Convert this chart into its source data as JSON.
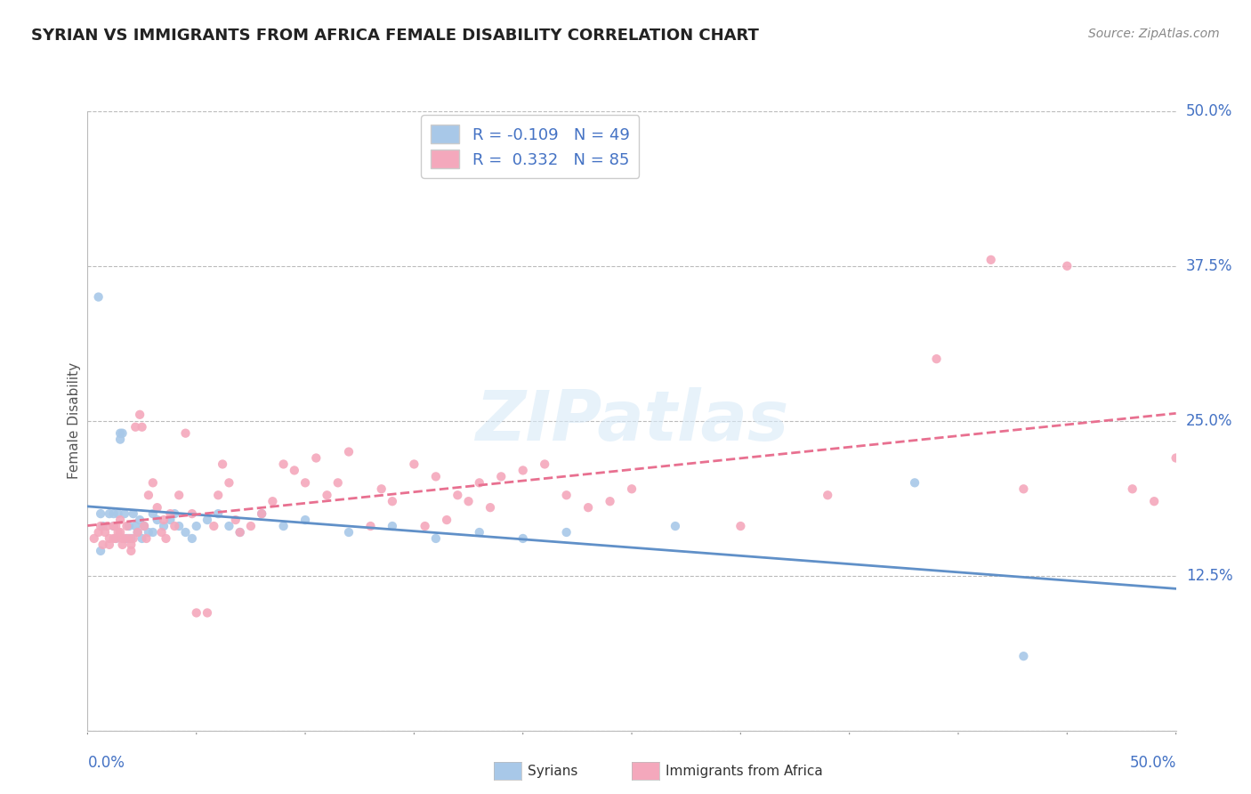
{
  "title": "SYRIAN VS IMMIGRANTS FROM AFRICA FEMALE DISABILITY CORRELATION CHART",
  "source": "Source: ZipAtlas.com",
  "ylabel": "Female Disability",
  "right_yticks": [
    0.0,
    0.125,
    0.25,
    0.375,
    0.5
  ],
  "right_yticklabels": [
    "",
    "12.5%",
    "25.0%",
    "37.5%",
    "50.0%"
  ],
  "xlim": [
    0.0,
    0.5
  ],
  "ylim": [
    0.0,
    0.5
  ],
  "syrian_color": "#a8c8e8",
  "african_line_color": "#e87090",
  "syrian_line_color": "#6090c8",
  "africa_color": "#f4a8bc",
  "syrian_R": -0.109,
  "syrian_N": 49,
  "africa_R": 0.332,
  "africa_N": 85,
  "watermark": "ZIPatlas",
  "legend_R_color": "#4472C4",
  "ytick_color": "#4472C4",
  "xtick_color": "#4472C4",
  "syrian_points": [
    [
      0.005,
      0.35
    ],
    [
      0.006,
      0.175
    ],
    [
      0.006,
      0.145
    ],
    [
      0.007,
      0.165
    ],
    [
      0.01,
      0.175
    ],
    [
      0.012,
      0.175
    ],
    [
      0.012,
      0.165
    ],
    [
      0.013,
      0.155
    ],
    [
      0.014,
      0.175
    ],
    [
      0.015,
      0.24
    ],
    [
      0.015,
      0.235
    ],
    [
      0.016,
      0.24
    ],
    [
      0.017,
      0.175
    ],
    [
      0.018,
      0.155
    ],
    [
      0.019,
      0.165
    ],
    [
      0.02,
      0.155
    ],
    [
      0.021,
      0.175
    ],
    [
      0.022,
      0.165
    ],
    [
      0.023,
      0.16
    ],
    [
      0.024,
      0.17
    ],
    [
      0.025,
      0.155
    ],
    [
      0.026,
      0.165
    ],
    [
      0.028,
      0.16
    ],
    [
      0.03,
      0.175
    ],
    [
      0.03,
      0.16
    ],
    [
      0.032,
      0.17
    ],
    [
      0.035,
      0.165
    ],
    [
      0.038,
      0.17
    ],
    [
      0.04,
      0.175
    ],
    [
      0.042,
      0.165
    ],
    [
      0.045,
      0.16
    ],
    [
      0.048,
      0.155
    ],
    [
      0.05,
      0.165
    ],
    [
      0.055,
      0.17
    ],
    [
      0.06,
      0.175
    ],
    [
      0.065,
      0.165
    ],
    [
      0.07,
      0.16
    ],
    [
      0.08,
      0.175
    ],
    [
      0.09,
      0.165
    ],
    [
      0.1,
      0.17
    ],
    [
      0.12,
      0.16
    ],
    [
      0.14,
      0.165
    ],
    [
      0.16,
      0.155
    ],
    [
      0.18,
      0.16
    ],
    [
      0.2,
      0.155
    ],
    [
      0.22,
      0.16
    ],
    [
      0.27,
      0.165
    ],
    [
      0.38,
      0.2
    ],
    [
      0.43,
      0.06
    ]
  ],
  "africa_points": [
    [
      0.003,
      0.155
    ],
    [
      0.005,
      0.16
    ],
    [
      0.006,
      0.165
    ],
    [
      0.007,
      0.15
    ],
    [
      0.008,
      0.16
    ],
    [
      0.009,
      0.165
    ],
    [
      0.01,
      0.155
    ],
    [
      0.01,
      0.15
    ],
    [
      0.012,
      0.165
    ],
    [
      0.012,
      0.155
    ],
    [
      0.013,
      0.165
    ],
    [
      0.013,
      0.155
    ],
    [
      0.014,
      0.16
    ],
    [
      0.015,
      0.17
    ],
    [
      0.015,
      0.16
    ],
    [
      0.016,
      0.155
    ],
    [
      0.016,
      0.15
    ],
    [
      0.017,
      0.155
    ],
    [
      0.018,
      0.165
    ],
    [
      0.019,
      0.155
    ],
    [
      0.02,
      0.15
    ],
    [
      0.02,
      0.145
    ],
    [
      0.021,
      0.155
    ],
    [
      0.022,
      0.245
    ],
    [
      0.023,
      0.16
    ],
    [
      0.024,
      0.255
    ],
    [
      0.025,
      0.245
    ],
    [
      0.026,
      0.165
    ],
    [
      0.027,
      0.155
    ],
    [
      0.028,
      0.19
    ],
    [
      0.03,
      0.2
    ],
    [
      0.032,
      0.18
    ],
    [
      0.034,
      0.16
    ],
    [
      0.035,
      0.17
    ],
    [
      0.036,
      0.155
    ],
    [
      0.038,
      0.175
    ],
    [
      0.04,
      0.165
    ],
    [
      0.042,
      0.19
    ],
    [
      0.045,
      0.24
    ],
    [
      0.048,
      0.175
    ],
    [
      0.05,
      0.095
    ],
    [
      0.055,
      0.095
    ],
    [
      0.058,
      0.165
    ],
    [
      0.06,
      0.19
    ],
    [
      0.062,
      0.215
    ],
    [
      0.065,
      0.2
    ],
    [
      0.068,
      0.17
    ],
    [
      0.07,
      0.16
    ],
    [
      0.075,
      0.165
    ],
    [
      0.08,
      0.175
    ],
    [
      0.085,
      0.185
    ],
    [
      0.09,
      0.215
    ],
    [
      0.095,
      0.21
    ],
    [
      0.1,
      0.2
    ],
    [
      0.105,
      0.22
    ],
    [
      0.11,
      0.19
    ],
    [
      0.115,
      0.2
    ],
    [
      0.12,
      0.225
    ],
    [
      0.13,
      0.165
    ],
    [
      0.135,
      0.195
    ],
    [
      0.14,
      0.185
    ],
    [
      0.15,
      0.215
    ],
    [
      0.155,
      0.165
    ],
    [
      0.16,
      0.205
    ],
    [
      0.165,
      0.17
    ],
    [
      0.17,
      0.19
    ],
    [
      0.175,
      0.185
    ],
    [
      0.18,
      0.2
    ],
    [
      0.185,
      0.18
    ],
    [
      0.19,
      0.205
    ],
    [
      0.2,
      0.21
    ],
    [
      0.21,
      0.215
    ],
    [
      0.22,
      0.19
    ],
    [
      0.23,
      0.18
    ],
    [
      0.24,
      0.185
    ],
    [
      0.25,
      0.195
    ],
    [
      0.3,
      0.165
    ],
    [
      0.34,
      0.19
    ],
    [
      0.39,
      0.3
    ],
    [
      0.415,
      0.38
    ],
    [
      0.43,
      0.195
    ],
    [
      0.45,
      0.375
    ],
    [
      0.48,
      0.195
    ],
    [
      0.49,
      0.185
    ],
    [
      0.5,
      0.22
    ]
  ]
}
